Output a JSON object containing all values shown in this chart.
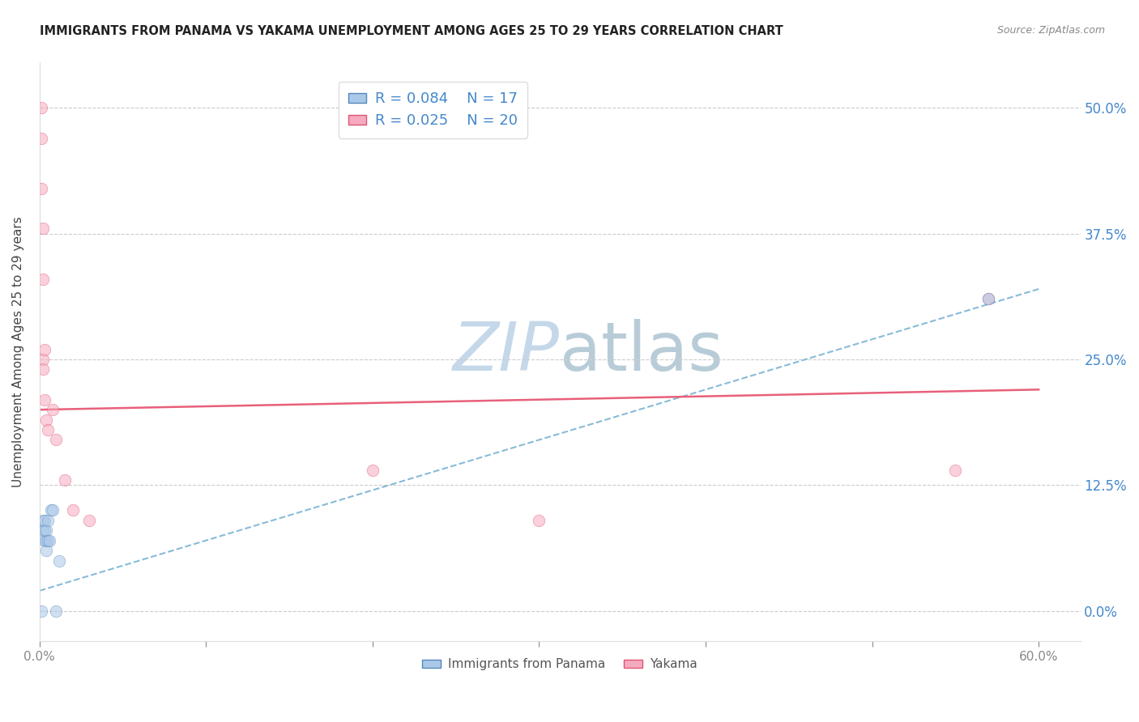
{
  "title": "IMMIGRANTS FROM PANAMA VS YAKAMA UNEMPLOYMENT AMONG AGES 25 TO 29 YEARS CORRELATION CHART",
  "source": "Source: ZipAtlas.com",
  "ylabel": "Unemployment Among Ages 25 to 29 years",
  "xlim": [
    0.0,
    0.625
  ],
  "ylim": [
    -0.03,
    0.545
  ],
  "yticks": [
    0.0,
    0.125,
    0.25,
    0.375,
    0.5
  ],
  "xticks": [
    0.0,
    0.1,
    0.2,
    0.3,
    0.4,
    0.5,
    0.6
  ],
  "background_color": "#ffffff",
  "watermark_zip": "ZIP",
  "watermark_atlas": "atlas",
  "watermark_color": "#d0e4f0",
  "panama_color": "#aac8e8",
  "yakama_color": "#f5aabf",
  "panama_edge_color": "#5588bb",
  "yakama_edge_color": "#e05575",
  "trend_blue_color": "#88bbd8",
  "trend_pink_color": "#e8607a",
  "legend_r_panama": "R = 0.084",
  "legend_n_panama": "N = 17",
  "legend_r_yakama": "R = 0.025",
  "legend_n_yakama": "N = 20",
  "panama_x": [
    0.001,
    0.002,
    0.002,
    0.003,
    0.003,
    0.003,
    0.004,
    0.004,
    0.004,
    0.005,
    0.005,
    0.006,
    0.007,
    0.008,
    0.01,
    0.012,
    0.57
  ],
  "panama_y": [
    0.0,
    0.08,
    0.09,
    0.07,
    0.08,
    0.09,
    0.07,
    0.08,
    0.06,
    0.07,
    0.09,
    0.07,
    0.1,
    0.1,
    0.0,
    0.05,
    0.31
  ],
  "yakama_x": [
    0.001,
    0.001,
    0.001,
    0.002,
    0.002,
    0.002,
    0.002,
    0.003,
    0.003,
    0.004,
    0.005,
    0.008,
    0.01,
    0.015,
    0.02,
    0.03,
    0.2,
    0.3,
    0.55,
    0.57
  ],
  "yakama_y": [
    0.47,
    0.5,
    0.42,
    0.38,
    0.33,
    0.25,
    0.24,
    0.26,
    0.21,
    0.19,
    0.18,
    0.2,
    0.17,
    0.13,
    0.1,
    0.09,
    0.14,
    0.09,
    0.14,
    0.31
  ],
  "panama_trend_x": [
    0.0,
    0.6
  ],
  "panama_trend_y": [
    0.02,
    0.32
  ],
  "yakama_trend_x": [
    0.0,
    0.6
  ],
  "yakama_trend_y": [
    0.2,
    0.22
  ],
  "marker_size": 110,
  "marker_alpha": 0.55
}
